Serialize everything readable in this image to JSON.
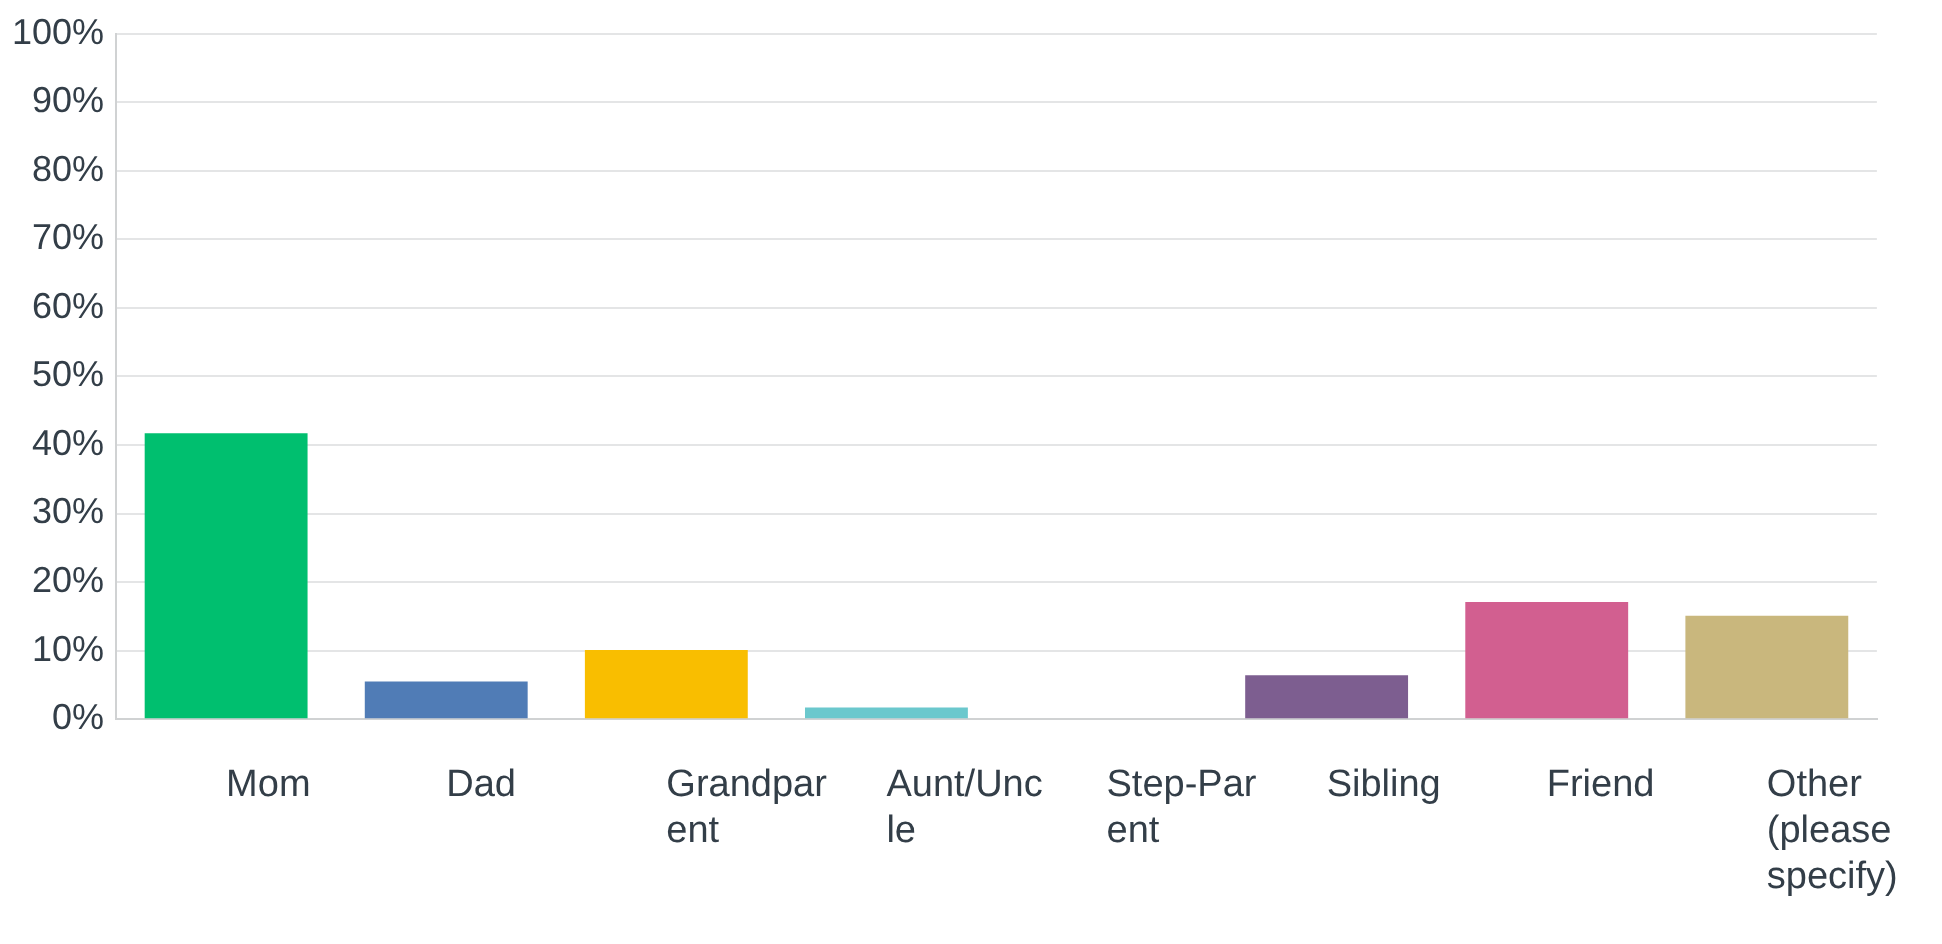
{
  "chart_data": {
    "type": "bar",
    "categories": [
      "Mom",
      "Dad",
      "Grandparent",
      "Aunt/Uncle",
      "Step-Parent",
      "Sibling",
      "Friend",
      "Other (please specify)"
    ],
    "values": [
      41.7,
      5.5,
      10.1,
      1.7,
      0,
      6.4,
      17.1,
      15.1
    ],
    "colors": [
      "#00bf6f",
      "#507cb6",
      "#f9be00",
      "#6bc8cd",
      "#ff8b4f",
      "#7d5e90",
      "#d25f90",
      "#c9b77d"
    ],
    "ylim": [
      0,
      100
    ],
    "yticks": [
      {
        "value": 0,
        "label": "0%"
      },
      {
        "value": 10,
        "label": "10%"
      },
      {
        "value": 20,
        "label": "20%"
      },
      {
        "value": 30,
        "label": "30%"
      },
      {
        "value": 40,
        "label": "40%"
      },
      {
        "value": 50,
        "label": "50%"
      },
      {
        "value": 60,
        "label": "60%"
      },
      {
        "value": 70,
        "label": "70%"
      },
      {
        "value": 80,
        "label": "80%"
      },
      {
        "value": 90,
        "label": "90%"
      },
      {
        "value": 100,
        "label": "100%"
      }
    ],
    "grid": "y",
    "legend": false
  }
}
